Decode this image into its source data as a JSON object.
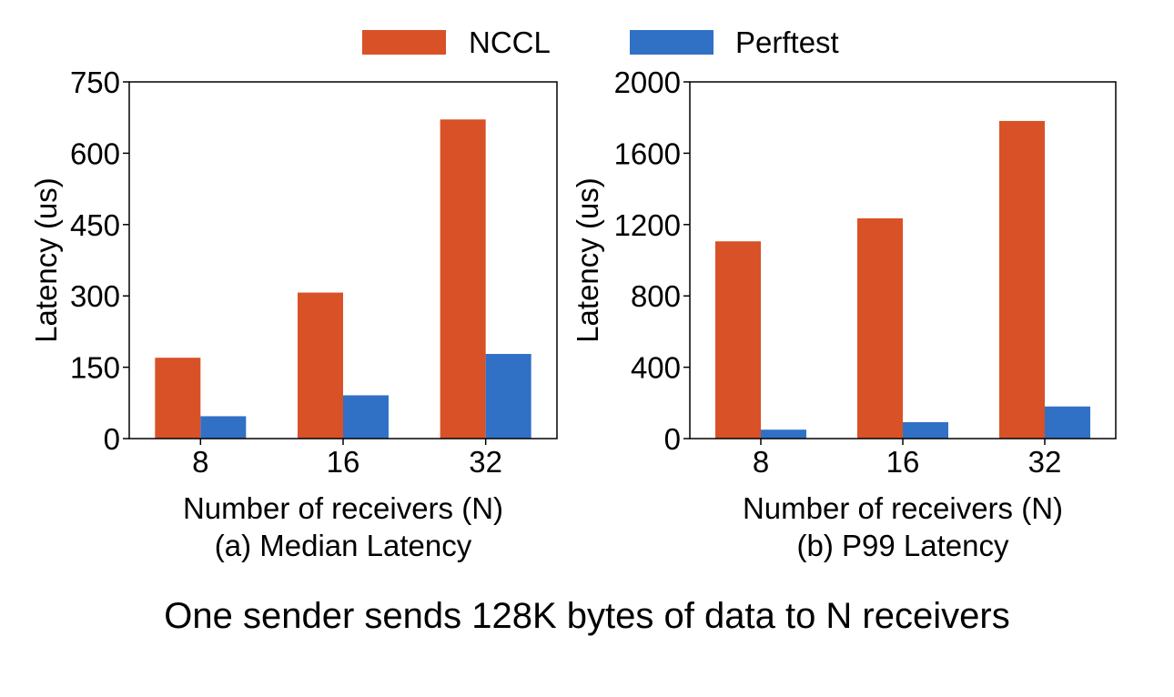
{
  "legend": {
    "entries": [
      {
        "name": "NCCL",
        "color": "#d95127"
      },
      {
        "name": "Perftest",
        "color": "#3071c6"
      }
    ]
  },
  "footer": {
    "caption": "One sender sends 128K bytes of data to N receivers"
  },
  "chart_data": [
    {
      "type": "bar",
      "title": "(a) Median Latency",
      "xlabel": "Number of receivers (N)",
      "ylabel": "Latency (us)",
      "categories": [
        "8",
        "16",
        "32"
      ],
      "ylim": [
        0,
        750
      ],
      "yticks": [
        0,
        150,
        300,
        450,
        600,
        750
      ],
      "series": [
        {
          "name": "NCCL",
          "color": "#d95127",
          "values": [
            170,
            307,
            671
          ]
        },
        {
          "name": "Perftest",
          "color": "#3071c6",
          "values": [
            47,
            91,
            178
          ]
        }
      ]
    },
    {
      "type": "bar",
      "title": "(b) P99 Latency",
      "xlabel": "Number of receivers (N)",
      "ylabel": "Latency (us)",
      "categories": [
        "8",
        "16",
        "32"
      ],
      "ylim": [
        0,
        2000
      ],
      "yticks": [
        0,
        400,
        800,
        1200,
        1600,
        2000
      ],
      "series": [
        {
          "name": "NCCL",
          "color": "#d95127",
          "values": [
            1106,
            1235,
            1781
          ]
        },
        {
          "name": "Perftest",
          "color": "#3071c6",
          "values": [
            50,
            92,
            180
          ]
        }
      ]
    }
  ]
}
